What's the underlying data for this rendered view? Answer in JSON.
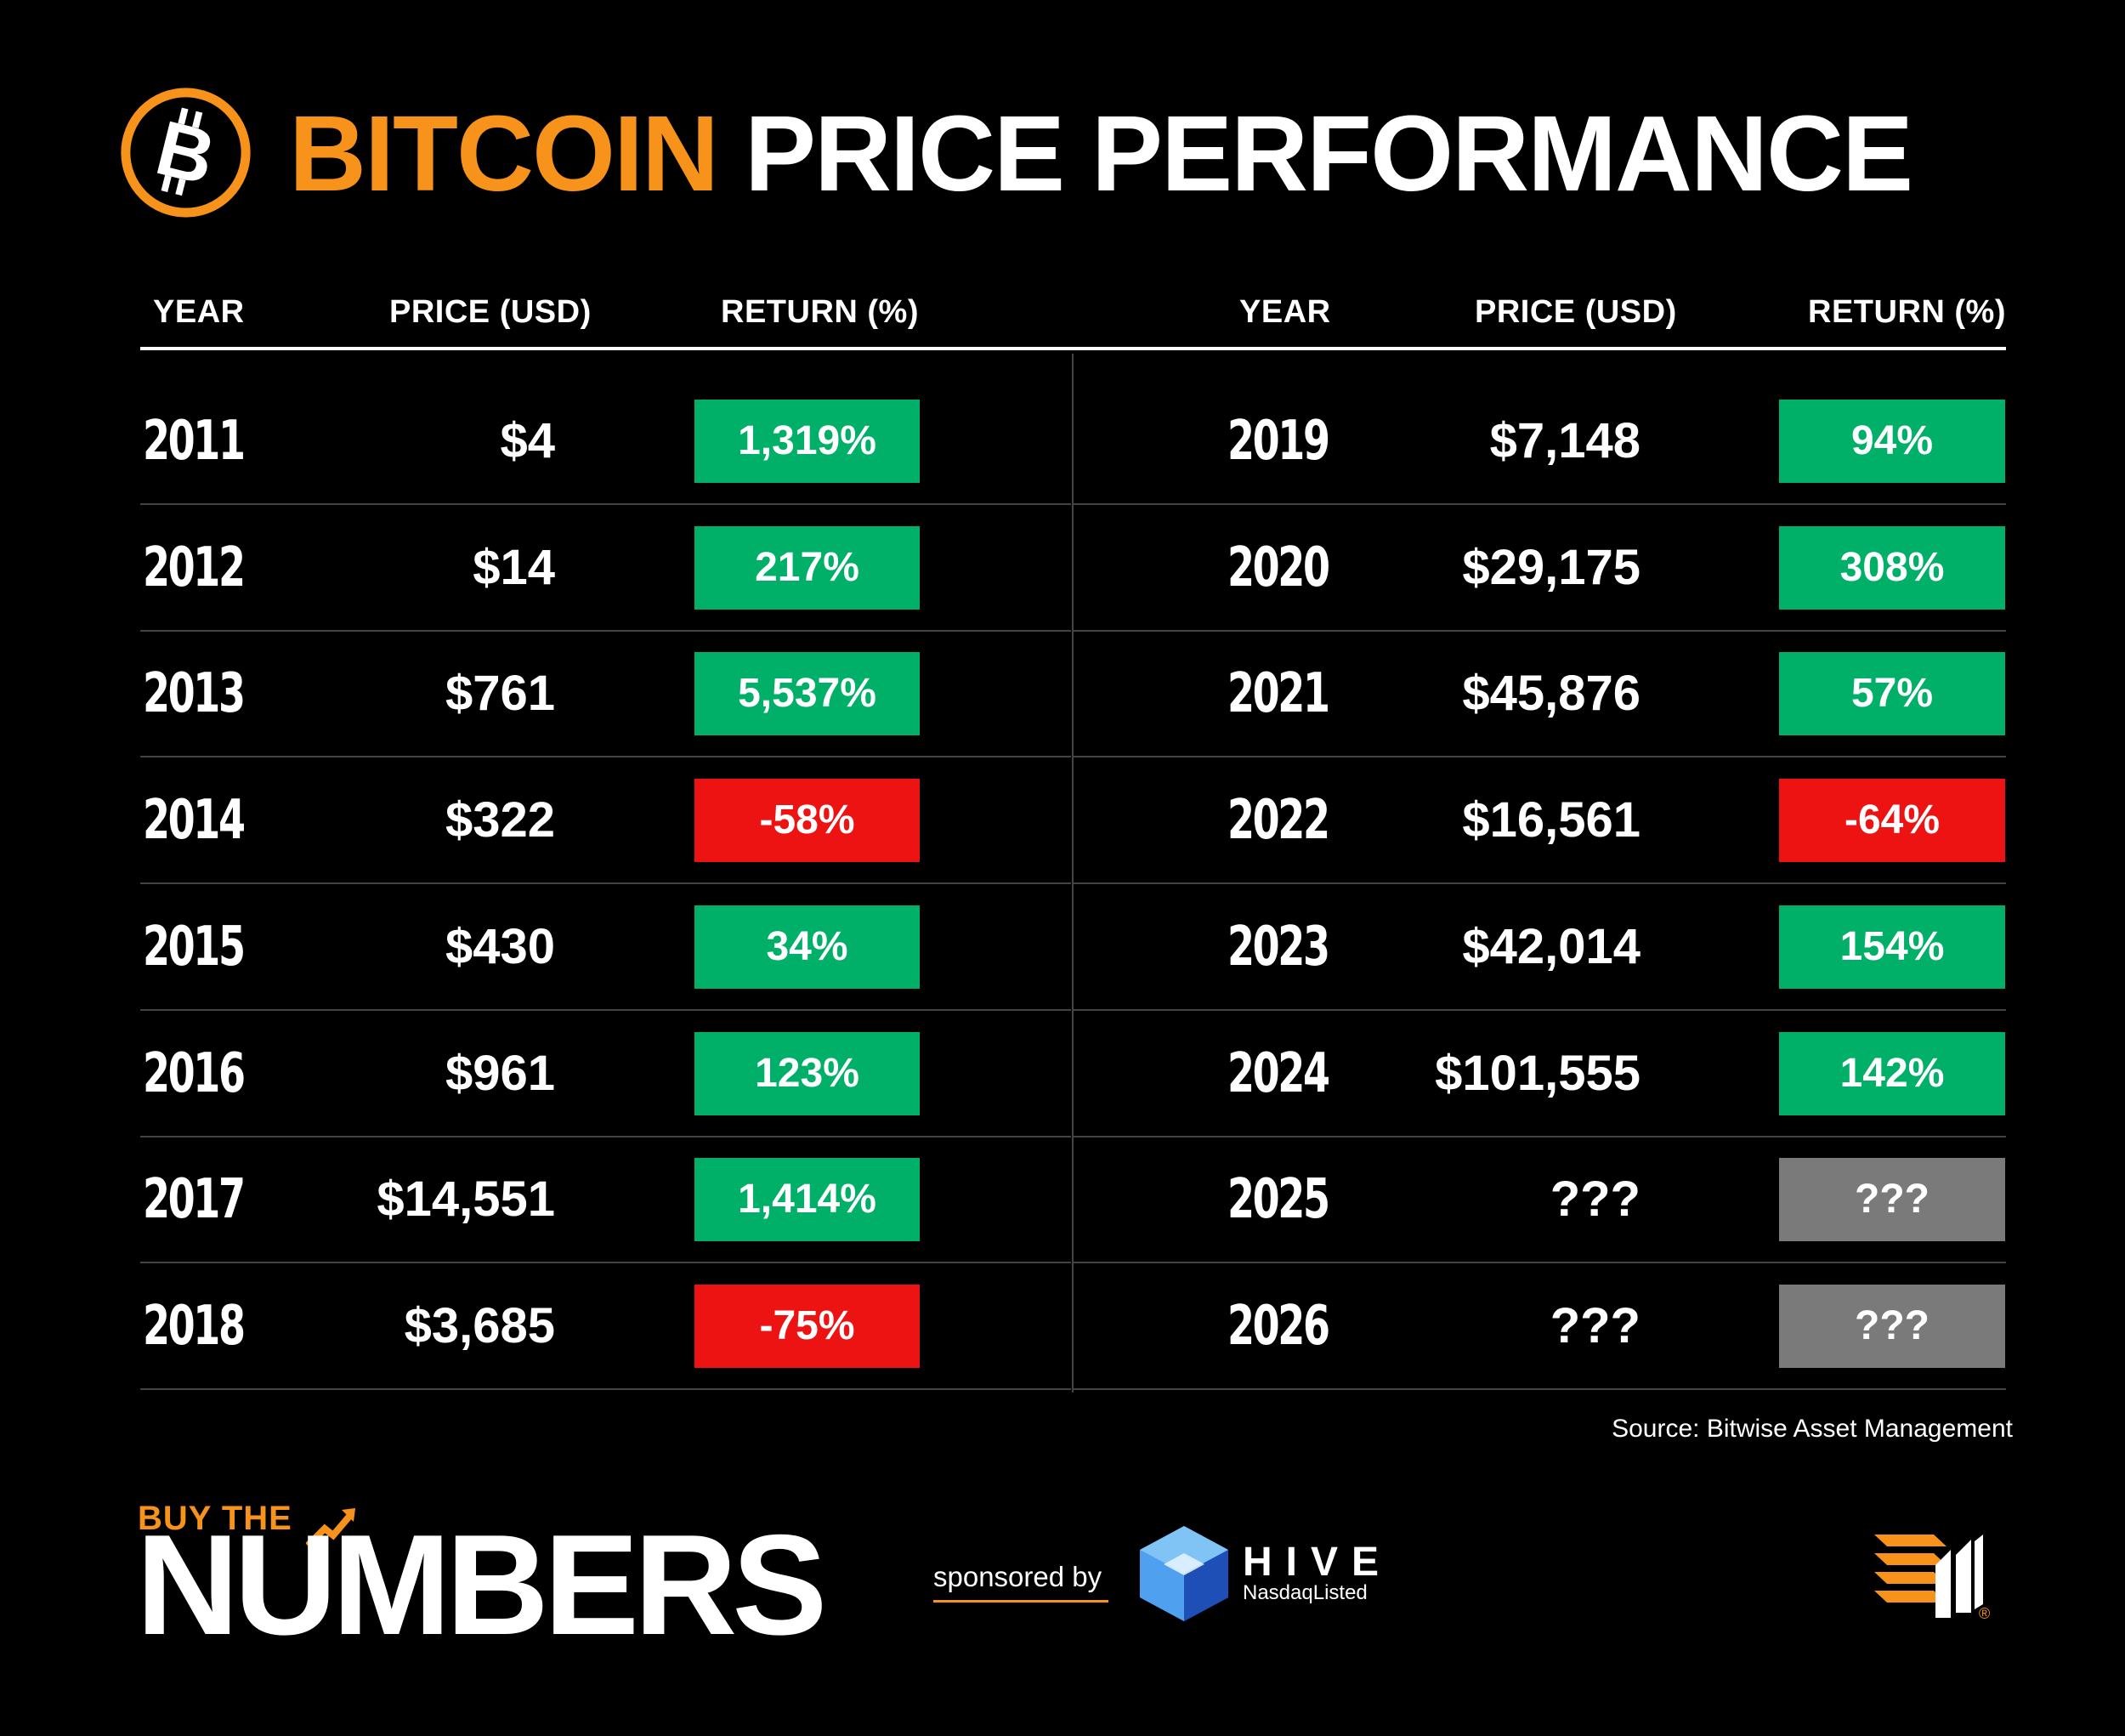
{
  "header": {
    "logo_icon": "bitcoin-logo-icon",
    "title_accent": "BITCOIN",
    "title_rest": "PRICE PERFORMANCE"
  },
  "colors": {
    "brand_orange": "#F7931A",
    "positive": "#00AF68",
    "negative": "#EE1313",
    "unknown": "#7A7A7A",
    "background": "#000000"
  },
  "chart_data": {
    "type": "table",
    "title": "BITCOIN PRICE PERFORMANCE",
    "columns": [
      "YEAR",
      "PRICE (USD)",
      "RETURN (%)"
    ],
    "rows": [
      {
        "year": "2011",
        "price": "$4",
        "ret": "1,319%",
        "status": "positive"
      },
      {
        "year": "2012",
        "price": "$14",
        "ret": "217%",
        "status": "positive"
      },
      {
        "year": "2013",
        "price": "$761",
        "ret": "5,537%",
        "status": "positive"
      },
      {
        "year": "2014",
        "price": "$322",
        "ret": "-58%",
        "status": "negative"
      },
      {
        "year": "2015",
        "price": "$430",
        "ret": "34%",
        "status": "positive"
      },
      {
        "year": "2016",
        "price": "$961",
        "ret": "123%",
        "status": "positive"
      },
      {
        "year": "2017",
        "price": "$14,551",
        "ret": "1,414%",
        "status": "positive"
      },
      {
        "year": "2018",
        "price": "$3,685",
        "ret": "-75%",
        "status": "negative"
      },
      {
        "year": "2019",
        "price": "$7,148",
        "ret": "94%",
        "status": "positive"
      },
      {
        "year": "2020",
        "price": "$29,175",
        "ret": "308%",
        "status": "positive"
      },
      {
        "year": "2021",
        "price": "$45,876",
        "ret": "57%",
        "status": "positive"
      },
      {
        "year": "2022",
        "price": "$16,561",
        "ret": "-64%",
        "status": "negative"
      },
      {
        "year": "2023",
        "price": "$42,014",
        "ret": "154%",
        "status": "positive"
      },
      {
        "year": "2024",
        "price": "$101,555",
        "ret": "142%",
        "status": "positive"
      },
      {
        "year": "2025",
        "price": "???",
        "ret": "???",
        "status": "unknown"
      },
      {
        "year": "2026",
        "price": "???",
        "ret": "???",
        "status": "unknown"
      }
    ],
    "source": "Source: Bitwise Asset Management"
  },
  "footer": {
    "brand_small": "BUY THE",
    "brand_big": "NUMBERS",
    "sponsored": "sponsored by",
    "hive_name": "HIVE",
    "hive_sub": "NasdaqListed",
    "hive_icon": "hive-cube-icon",
    "publisher_icon": "publisher-logo-icon",
    "registered": "®"
  }
}
